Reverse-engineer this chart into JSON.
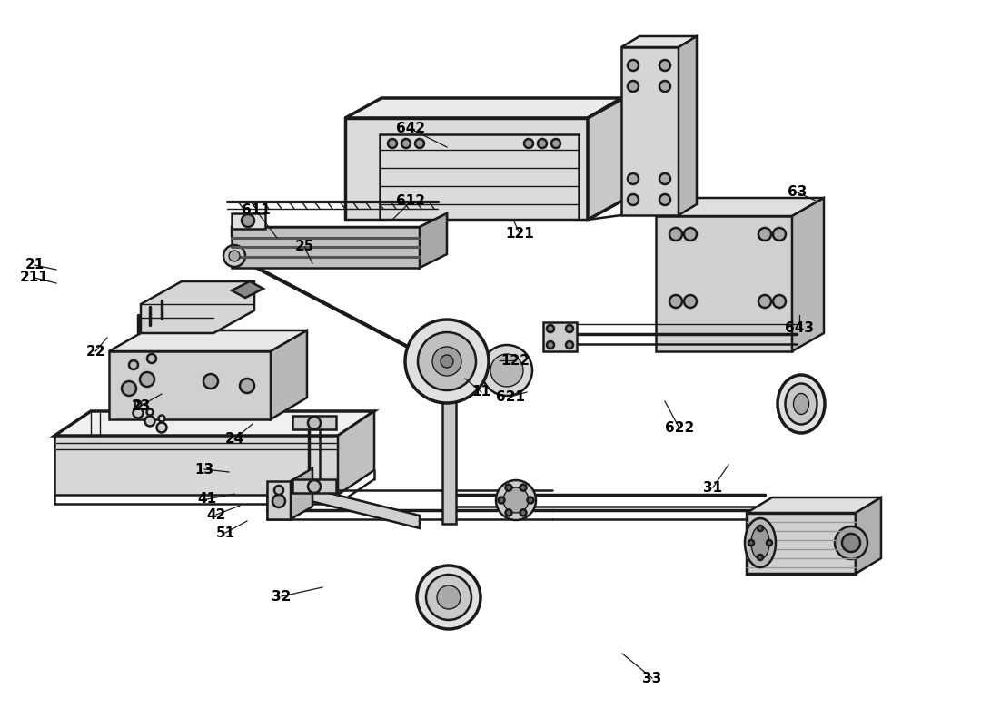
{
  "background_color": "#ffffff",
  "line_color": "#1a1a1a",
  "label_color": "#000000",
  "label_fontsize": 11,
  "fig_width": 10.8,
  "fig_height": 8.02,
  "lw_main": 1.8,
  "lw_thin": 1.0,
  "lw_thick": 2.5,
  "labels": [
    [
      "33",
      718,
      747,
      685,
      720
    ],
    [
      "32",
      310,
      657,
      355,
      647
    ],
    [
      "51",
      248,
      587,
      272,
      574
    ],
    [
      "42",
      238,
      567,
      264,
      557
    ],
    [
      "41",
      228,
      550,
      258,
      544
    ],
    [
      "13",
      225,
      517,
      252,
      520
    ],
    [
      "24",
      258,
      484,
      278,
      467
    ],
    [
      "23",
      155,
      447,
      178,
      434
    ],
    [
      "22",
      105,
      387,
      118,
      372
    ],
    [
      "211",
      38,
      306,
      62,
      312
    ],
    [
      "21",
      38,
      292,
      62,
      297
    ],
    [
      "25",
      335,
      272,
      344,
      290
    ],
    [
      "611",
      282,
      232,
      305,
      262
    ],
    [
      "612",
      452,
      222,
      432,
      242
    ],
    [
      "642",
      452,
      142,
      492,
      162
    ],
    [
      "121",
      572,
      257,
      565,
      242
    ],
    [
      "63",
      878,
      212,
      900,
      222
    ],
    [
      "643",
      880,
      362,
      880,
      347
    ],
    [
      "622",
      748,
      472,
      732,
      442
    ],
    [
      "621",
      562,
      437,
      580,
      432
    ],
    [
      "11",
      530,
      432,
      512,
      417
    ],
    [
      "122",
      567,
      397,
      550,
      397
    ],
    [
      "31",
      785,
      537,
      802,
      512
    ]
  ]
}
